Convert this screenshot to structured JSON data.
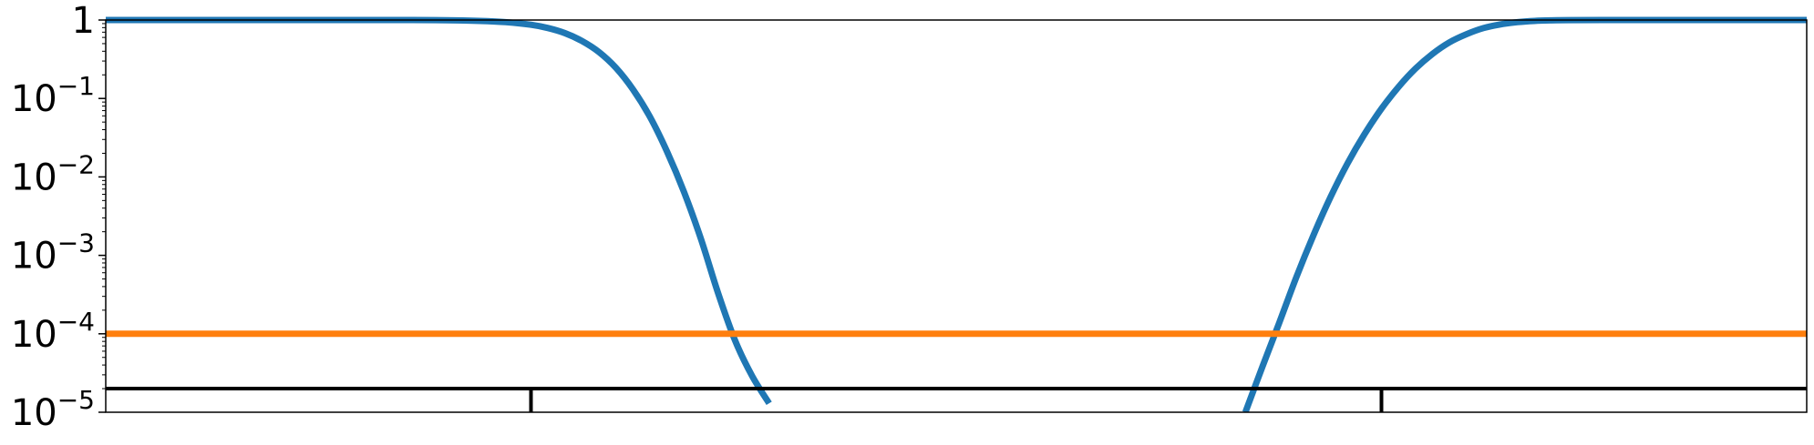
{
  "chart_data": {
    "type": "line",
    "title": "",
    "xlabel": "",
    "ylabel": "",
    "y_scale": "log",
    "ylim": [
      1e-05,
      1
    ],
    "xlim": [
      0,
      1
    ],
    "grid": false,
    "legend": "none",
    "y_ticks": [
      {
        "value": 1,
        "base": "1",
        "exp": ""
      },
      {
        "value": 0.1,
        "base": "10",
        "exp": "−1"
      },
      {
        "value": 0.01,
        "base": "10",
        "exp": "−2"
      },
      {
        "value": 0.001,
        "base": "10",
        "exp": "−3"
      },
      {
        "value": 0.0001,
        "base": "10",
        "exp": "−4"
      },
      {
        "value": 1e-05,
        "base": "10",
        "exp": "−5"
      }
    ],
    "series": [
      {
        "color": "#1f77b4",
        "style": "curve",
        "x": [
          0.0,
          0.05,
          0.1,
          0.15,
          0.18,
          0.2,
          0.22,
          0.235,
          0.25,
          0.26,
          0.27,
          0.28,
          0.29,
          0.3,
          0.31,
          0.32,
          0.33,
          0.34,
          0.35,
          0.36,
          0.37,
          0.38,
          0.39
        ],
        "y": [
          1.0,
          1.0,
          1.0,
          1.0,
          0.999,
          0.995,
          0.975,
          0.94,
          0.87,
          0.79,
          0.68,
          0.54,
          0.39,
          0.245,
          0.13,
          0.058,
          0.021,
          0.0064,
          0.0016,
          0.00033,
          8.2e-05,
          2.9e-05,
          1.3e-05
        ]
      },
      {
        "color": "#1f77b4",
        "style": "curve",
        "x": [
          0.67,
          0.68,
          0.69,
          0.7,
          0.71,
          0.72,
          0.73,
          0.74,
          0.75,
          0.76,
          0.77,
          0.78,
          0.79,
          0.8,
          0.81,
          0.82,
          0.83,
          0.84,
          0.85,
          0.86,
          0.88,
          0.92,
          0.96,
          1.0
        ],
        "y": [
          1e-05,
          3.8e-05,
          0.00014,
          0.00053,
          0.0018,
          0.0055,
          0.0148,
          0.035,
          0.074,
          0.14,
          0.24,
          0.37,
          0.52,
          0.66,
          0.79,
          0.88,
          0.94,
          0.975,
          0.99,
          0.996,
          1.0,
          1.0,
          1.0,
          1.0
        ]
      },
      {
        "color": "#ff7f0e",
        "style": "horizontal",
        "x": [
          0,
          1
        ],
        "y": [
          0.0001,
          0.0001
        ]
      },
      {
        "color": "#000000",
        "style": "horizontal",
        "x": [
          0,
          1
        ],
        "y": [
          2e-05,
          2e-05
        ]
      }
    ],
    "markers": [
      {
        "x": 0.25,
        "y_from": 1e-05,
        "y_to": 2e-05,
        "color": "#000000"
      },
      {
        "x": 0.75,
        "y_from": 1e-05,
        "y_to": 2e-05,
        "color": "#000000"
      }
    ]
  }
}
